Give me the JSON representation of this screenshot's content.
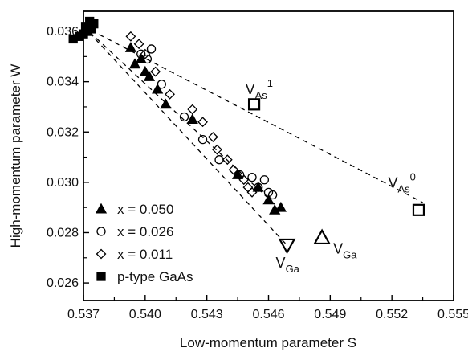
{
  "chart_data": {
    "type": "scatter",
    "xlabel": "Low-momentum parameter S",
    "ylabel": "High-momentum parameter W",
    "xlim": [
      0.537,
      0.555
    ],
    "ylim": [
      0.0253,
      0.0368
    ],
    "xticks": [
      0.537,
      0.54,
      0.543,
      0.546,
      0.549,
      0.552,
      0.555
    ],
    "xtick_labels": [
      "0.537",
      "0.540",
      "0.543",
      "0.546",
      "0.549",
      "0.552",
      "0.555"
    ],
    "yticks": [
      0.026,
      0.028,
      0.03,
      0.032,
      0.034,
      0.036
    ],
    "ytick_labels": [
      "0.026",
      "0.028",
      "0.030",
      "0.032",
      "0.034",
      "0.036"
    ],
    "grid": false,
    "legend_position": "bottom-left",
    "series": [
      {
        "name": "x = 0.050",
        "marker": "triangle-up-filled",
        "x": [
          0.5393,
          0.5395,
          0.5398,
          0.54,
          0.5402,
          0.5406,
          0.541,
          0.5423,
          0.5445,
          0.5455,
          0.546,
          0.5463,
          0.5466
        ],
        "y": [
          0.03535,
          0.0347,
          0.0349,
          0.0344,
          0.0342,
          0.0337,
          0.0331,
          0.0325,
          0.0303,
          0.0298,
          0.0293,
          0.0289,
          0.029
        ]
      },
      {
        "name": "x = 0.026",
        "marker": "circle-open",
        "x": [
          0.5398,
          0.5401,
          0.5403,
          0.5408,
          0.5419,
          0.5428,
          0.5436,
          0.5446,
          0.5452,
          0.5455,
          0.5458,
          0.546,
          0.5462
        ],
        "y": [
          0.0351,
          0.0349,
          0.0353,
          0.0339,
          0.0326,
          0.0317,
          0.0309,
          0.0303,
          0.0302,
          0.0298,
          0.0301,
          0.0296,
          0.0295
        ]
      },
      {
        "name": "x = 0.011",
        "marker": "diamond-open",
        "x": [
          0.5393,
          0.5397,
          0.54,
          0.5405,
          0.5412,
          0.5423,
          0.5428,
          0.5433,
          0.5435,
          0.544,
          0.5443,
          0.5448,
          0.545,
          0.5452
        ],
        "y": [
          0.0358,
          0.0355,
          0.0351,
          0.0344,
          0.0335,
          0.0329,
          0.0324,
          0.0318,
          0.0313,
          0.0309,
          0.0305,
          0.0301,
          0.0298,
          0.0296
        ]
      },
      {
        "name": "p-type GaAs",
        "marker": "square-filled",
        "x": [
          0.5365,
          0.5368,
          0.537,
          0.5371,
          0.5372,
          0.5373,
          0.5374,
          0.5375
        ],
        "y": [
          0.0357,
          0.0358,
          0.0359,
          0.0362,
          0.036,
          0.0364,
          0.0361,
          0.0363
        ]
      }
    ],
    "defects": [
      {
        "label_main": "V",
        "label_sub": "As",
        "label_sup": "1-",
        "marker": "square-open-large",
        "x": 0.5453,
        "y": 0.0331
      },
      {
        "label_main": "V",
        "label_sub": "As",
        "label_sup": "0",
        "marker": "square-open-large",
        "x": 0.5533,
        "y": 0.0289
      },
      {
        "label_main": "V",
        "label_sub": "Ga",
        "label_sup": "",
        "marker": "triangle-down-open-large",
        "x": 0.5469,
        "y": 0.0275
      },
      {
        "label_main": "V",
        "label_sub": "Ga",
        "label_sup": "",
        "marker": "triangle-up-open-large",
        "x": 0.5486,
        "y": 0.0278
      }
    ],
    "dashed_lines": [
      {
        "from": [
          0.537,
          0.0362
        ],
        "to": [
          0.5535,
          0.0292
        ]
      },
      {
        "from": [
          0.537,
          0.0362
        ],
        "to": [
          0.5469,
          0.0275
        ]
      },
      {
        "from": [
          0.537,
          0.0362
        ],
        "to": [
          0.5466,
          0.0289
        ]
      }
    ]
  }
}
